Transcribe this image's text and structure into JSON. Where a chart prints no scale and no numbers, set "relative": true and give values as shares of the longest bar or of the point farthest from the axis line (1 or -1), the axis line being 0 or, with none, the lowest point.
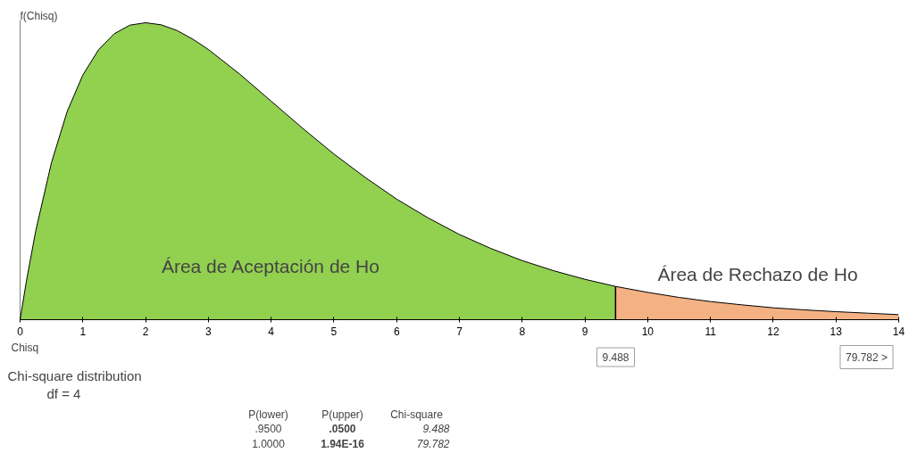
{
  "chart_data": {
    "type": "area",
    "relative": true,
    "xlabel": "Chisq",
    "ylabel": "f(Chisq)",
    "xlim": [
      0,
      14
    ],
    "xticks": [
      0,
      1,
      2,
      3,
      4,
      5,
      6,
      7,
      8,
      9,
      10,
      11,
      12,
      13,
      14
    ],
    "grid": false,
    "series": [
      {
        "color": "#92d050",
        "x": [
          0,
          0.1,
          0.25,
          0.5,
          0.75,
          1,
          1.25,
          1.5,
          1.75,
          2,
          2.25,
          2.5,
          2.75,
          3,
          3.5,
          4,
          4.5,
          5,
          5.5,
          6,
          6.5,
          7,
          7.5,
          8,
          8.5,
          9,
          9.488
        ],
        "values": [
          0,
          0.129,
          0.3,
          0.529,
          0.701,
          0.824,
          0.909,
          0.963,
          0.992,
          1,
          0.993,
          0.974,
          0.945,
          0.91,
          0.827,
          0.736,
          0.645,
          0.558,
          0.479,
          0.406,
          0.343,
          0.287,
          0.24,
          0.199,
          0.165,
          0.136,
          0.112
        ]
      },
      {
        "color": "#f4b183",
        "x": [
          9.488,
          10,
          10.5,
          11,
          11.5,
          12,
          12.5,
          13,
          13.5,
          14
        ],
        "values": [
          0.112,
          0.092,
          0.075,
          0.061,
          0.05,
          0.04,
          0.033,
          0.027,
          0.022,
          0.017
        ]
      }
    ],
    "ref_lines": [
      {
        "axis": "x",
        "value": 9.488,
        "color": "#000000"
      }
    ],
    "annotations": [
      "Área de Aceptación de Ho",
      "Área de Rechazo de Ho",
      "Chi-square distribution",
      "df =  4",
      "P(lower)",
      "P(upper)",
      "Chi-square",
      ".9500",
      ".0500",
      "9.488",
      "1.0000",
      "1.94E-16",
      "79.782",
      "9.488",
      "79.782 >"
    ]
  }
}
